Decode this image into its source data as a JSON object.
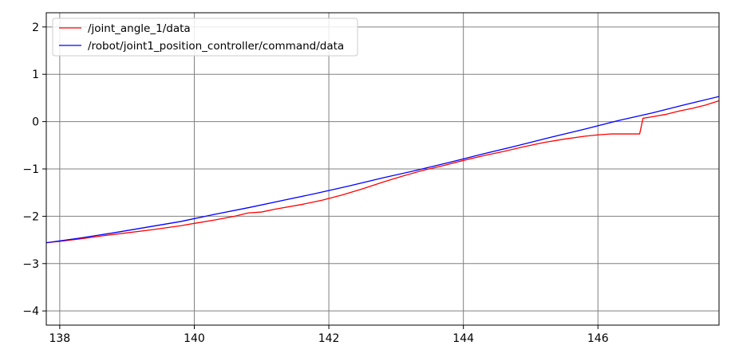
{
  "chart_data": {
    "type": "line",
    "title": "",
    "xlabel": "",
    "ylabel": "",
    "xlim": [
      137.8,
      147.8
    ],
    "ylim": [
      -4.3,
      2.3
    ],
    "xticks": [
      138,
      140,
      142,
      144,
      146
    ],
    "yticks": [
      2,
      1,
      0,
      -1,
      -2,
      -3,
      -4
    ],
    "ytick_labels": [
      "2",
      "1",
      "0",
      "−1",
      "−2",
      "−3",
      "−4"
    ],
    "grid": true,
    "legend_position": "top-left",
    "series": [
      {
        "name": "/joint_angle_1/data",
        "color": "#ff0000",
        "points": [
          [
            137.8,
            -2.56
          ],
          [
            138.0,
            -2.53
          ],
          [
            138.3,
            -2.48
          ],
          [
            138.6,
            -2.42
          ],
          [
            139.0,
            -2.35
          ],
          [
            139.4,
            -2.28
          ],
          [
            139.8,
            -2.2
          ],
          [
            140.0,
            -2.15
          ],
          [
            140.3,
            -2.08
          ],
          [
            140.6,
            -2.0
          ],
          [
            140.8,
            -1.93
          ],
          [
            141.0,
            -1.91
          ],
          [
            141.2,
            -1.85
          ],
          [
            141.6,
            -1.75
          ],
          [
            141.9,
            -1.66
          ],
          [
            142.2,
            -1.55
          ],
          [
            142.5,
            -1.42
          ],
          [
            142.8,
            -1.28
          ],
          [
            143.1,
            -1.15
          ],
          [
            143.4,
            -1.03
          ],
          [
            143.7,
            -0.93
          ],
          [
            144.0,
            -0.82
          ],
          [
            144.3,
            -0.72
          ],
          [
            144.6,
            -0.63
          ],
          [
            144.9,
            -0.53
          ],
          [
            145.2,
            -0.44
          ],
          [
            145.5,
            -0.37
          ],
          [
            145.8,
            -0.31
          ],
          [
            146.0,
            -0.28
          ],
          [
            146.2,
            -0.26
          ],
          [
            146.4,
            -0.26
          ],
          [
            146.62,
            -0.26
          ],
          [
            146.67,
            0.07
          ],
          [
            146.8,
            0.1
          ],
          [
            147.0,
            0.15
          ],
          [
            147.2,
            0.22
          ],
          [
            147.4,
            0.28
          ],
          [
            147.6,
            0.35
          ],
          [
            147.8,
            0.44
          ]
        ]
      },
      {
        "name": "/robot/joint1_position_controller/command/data",
        "color": "#0000ff",
        "points": [
          [
            137.8,
            -2.56
          ],
          [
            138.3,
            -2.46
          ],
          [
            138.8,
            -2.35
          ],
          [
            139.3,
            -2.23
          ],
          [
            139.8,
            -2.11
          ],
          [
            140.3,
            -1.96
          ],
          [
            140.8,
            -1.82
          ],
          [
            141.3,
            -1.67
          ],
          [
            141.8,
            -1.52
          ],
          [
            142.3,
            -1.36
          ],
          [
            142.8,
            -1.19
          ],
          [
            143.3,
            -1.03
          ],
          [
            143.8,
            -0.86
          ],
          [
            144.3,
            -0.68
          ],
          [
            144.8,
            -0.51
          ],
          [
            145.3,
            -0.33
          ],
          [
            145.8,
            -0.16
          ],
          [
            146.3,
            0.02
          ],
          [
            146.8,
            0.18
          ],
          [
            147.3,
            0.36
          ],
          [
            147.8,
            0.53
          ]
        ]
      }
    ]
  }
}
